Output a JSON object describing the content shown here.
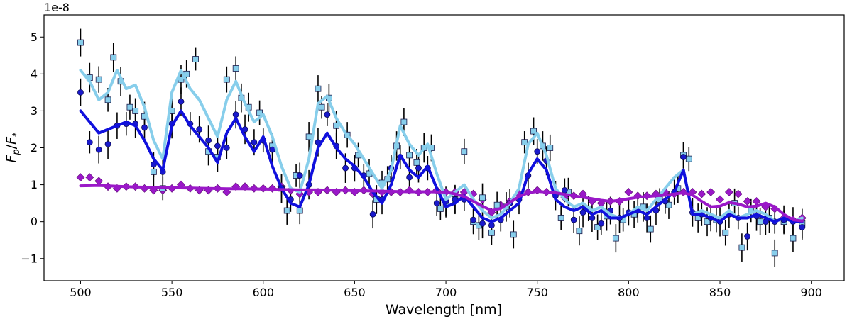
{
  "chart_data": {
    "type": "scatter",
    "title": "",
    "xlabel": "Wavelength [nm]",
    "ylabel_main": "F",
    "ylabel_sub": "p",
    "ylabel_den": "F",
    "ylabel_den_sub": "*",
    "offset_text": "1e-8",
    "xlim": [
      480,
      918
    ],
    "ylim": [
      -1.6,
      5.6
    ],
    "xticks": [
      500,
      550,
      600,
      650,
      700,
      750,
      800,
      850,
      900
    ],
    "xtick_labels": [
      "500",
      "550",
      "600",
      "650",
      "700",
      "750",
      "800",
      "850",
      "900"
    ],
    "yticks": [
      -1,
      0,
      1,
      2,
      3,
      4,
      5
    ],
    "ytick_labels": [
      "−1",
      "0",
      "1",
      "2",
      "3",
      "4",
      "5"
    ],
    "grid": false,
    "legend": "none",
    "lines": [
      {
        "name": "light-blue model",
        "color": "#87CEEB",
        "x": [
          500,
          505,
          510,
          515,
          520,
          525,
          530,
          535,
          540,
          545,
          550,
          555,
          560,
          565,
          570,
          575,
          580,
          585,
          590,
          595,
          600,
          605,
          610,
          615,
          620,
          625,
          630,
          635,
          640,
          645,
          650,
          655,
          660,
          665,
          670,
          675,
          680,
          685,
          690,
          695,
          700,
          705,
          710,
          715,
          720,
          725,
          730,
          735,
          740,
          745,
          750,
          755,
          760,
          765,
          770,
          775,
          780,
          785,
          790,
          795,
          800,
          805,
          810,
          815,
          820,
          825,
          830,
          835,
          840,
          845,
          850,
          855,
          860,
          865,
          870,
          875,
          880,
          885,
          890,
          895
        ],
        "y": [
          4.1,
          3.8,
          3.3,
          3.5,
          4.1,
          3.6,
          3.7,
          3.1,
          2.2,
          1.7,
          3.5,
          4.1,
          3.6,
          3.3,
          2.8,
          2.3,
          3.3,
          3.8,
          3.2,
          2.7,
          2.9,
          2.3,
          1.5,
          0.9,
          0.8,
          1.7,
          3.2,
          3.4,
          2.8,
          2.4,
          2.1,
          1.7,
          1.3,
          0.9,
          1.4,
          2.6,
          2.1,
          1.8,
          2.1,
          1.3,
          0.6,
          0.8,
          1.0,
          0.6,
          0.3,
          0.1,
          0.2,
          0.5,
          0.9,
          2.1,
          2.4,
          1.8,
          0.9,
          0.6,
          0.4,
          0.5,
          0.3,
          0.4,
          0.2,
          0.1,
          0.2,
          0.4,
          0.3,
          0.6,
          0.9,
          1.2,
          1.4,
          0.2,
          0.3,
          0.2,
          0.1,
          0.3,
          0.1,
          0.2,
          0.3,
          0.2,
          0.0,
          0.1,
          0.0,
          0.1
        ]
      },
      {
        "name": "blue model",
        "color": "#1010DD",
        "x": [
          500,
          505,
          510,
          515,
          520,
          525,
          530,
          535,
          540,
          545,
          550,
          555,
          560,
          565,
          570,
          575,
          580,
          585,
          590,
          595,
          600,
          605,
          610,
          615,
          620,
          625,
          630,
          635,
          640,
          645,
          650,
          655,
          660,
          665,
          670,
          675,
          680,
          685,
          690,
          695,
          700,
          705,
          710,
          715,
          720,
          725,
          730,
          735,
          740,
          745,
          750,
          755,
          760,
          765,
          770,
          775,
          780,
          785,
          790,
          795,
          800,
          805,
          810,
          815,
          820,
          825,
          830,
          835,
          840,
          845,
          850,
          855,
          860,
          865,
          870,
          875,
          880,
          885,
          890,
          895
        ],
        "y": [
          3.0,
          2.7,
          2.4,
          2.5,
          2.6,
          2.7,
          2.6,
          2.2,
          1.7,
          1.4,
          2.6,
          3.0,
          2.6,
          2.3,
          2.0,
          1.6,
          2.4,
          2.8,
          2.3,
          1.9,
          2.3,
          1.5,
          0.9,
          0.5,
          0.4,
          1.0,
          2.0,
          2.4,
          2.0,
          1.7,
          1.5,
          1.2,
          0.8,
          0.5,
          1.0,
          1.8,
          1.4,
          1.2,
          1.5,
          0.9,
          0.4,
          0.5,
          0.7,
          0.4,
          0.1,
          0.0,
          0.1,
          0.3,
          0.5,
          1.3,
          1.7,
          1.4,
          0.6,
          0.4,
          0.3,
          0.4,
          0.2,
          0.3,
          0.1,
          0.1,
          0.2,
          0.3,
          0.2,
          0.4,
          0.6,
          0.8,
          1.4,
          0.2,
          0.2,
          0.1,
          0.0,
          0.2,
          0.1,
          0.1,
          0.2,
          0.1,
          0.0,
          0.1,
          0.0,
          0.0
        ]
      },
      {
        "name": "purple model",
        "color": "#9A18C8",
        "x": [
          500,
          510,
          520,
          530,
          540,
          550,
          560,
          570,
          580,
          590,
          600,
          610,
          620,
          630,
          640,
          650,
          660,
          670,
          680,
          690,
          700,
          705,
          710,
          715,
          720,
          725,
          730,
          735,
          740,
          745,
          750,
          755,
          760,
          765,
          770,
          775,
          780,
          785,
          790,
          795,
          800,
          805,
          810,
          815,
          820,
          825,
          830,
          835,
          840,
          845,
          850,
          855,
          860,
          865,
          870,
          875,
          880,
          885,
          890,
          895
        ],
        "y": [
          0.97,
          0.98,
          0.96,
          0.94,
          0.93,
          0.92,
          0.91,
          0.9,
          0.89,
          0.89,
          0.88,
          0.87,
          0.86,
          0.86,
          0.85,
          0.84,
          0.83,
          0.82,
          0.81,
          0.81,
          0.8,
          0.75,
          0.68,
          0.55,
          0.42,
          0.3,
          0.36,
          0.52,
          0.68,
          0.78,
          0.82,
          0.8,
          0.78,
          0.74,
          0.7,
          0.66,
          0.62,
          0.58,
          0.55,
          0.58,
          0.62,
          0.66,
          0.68,
          0.7,
          0.72,
          0.75,
          0.78,
          0.72,
          0.55,
          0.4,
          0.42,
          0.52,
          0.48,
          0.4,
          0.42,
          0.5,
          0.4,
          0.2,
          0.05,
          0.02
        ]
      }
    ],
    "series": [
      {
        "name": "light-blue squares",
        "marker": "square",
        "color": "#87CEEB",
        "x": [
          500,
          505,
          510,
          515,
          518,
          522,
          527,
          530,
          535,
          540,
          545,
          550,
          555,
          558,
          563,
          570,
          575,
          580,
          585,
          588,
          592,
          598,
          605,
          610,
          613,
          618,
          620,
          625,
          630,
          632,
          636,
          640,
          646,
          652,
          658,
          662,
          665,
          668,
          673,
          677,
          680,
          684,
          688,
          692,
          697,
          700,
          705,
          710,
          715,
          718,
          720,
          725,
          728,
          733,
          737,
          743,
          748,
          753,
          757,
          763,
          767,
          773,
          778,
          783,
          788,
          793,
          797,
          803,
          808,
          812,
          817,
          822,
          827,
          830,
          833,
          838,
          843,
          848,
          853,
          858,
          862,
          867,
          872,
          877,
          880,
          885,
          890,
          895
        ],
        "y": [
          4.85,
          3.9,
          3.85,
          3.3,
          4.45,
          3.8,
          3.1,
          3.0,
          2.85,
          1.35,
          0.9,
          3.0,
          3.85,
          4.0,
          4.4,
          1.9,
          1.75,
          3.85,
          4.15,
          3.35,
          3.1,
          2.95,
          2.05,
          0.9,
          0.3,
          1.25,
          0.3,
          2.3,
          3.6,
          3.1,
          3.35,
          2.6,
          2.35,
          1.8,
          1.3,
          0.6,
          1.05,
          1.15,
          2.05,
          2.7,
          1.8,
          1.6,
          2.0,
          2.0,
          0.35,
          0.5,
          0.6,
          1.9,
          0.0,
          -0.1,
          0.65,
          -0.3,
          0.45,
          0.4,
          -0.35,
          2.15,
          2.45,
          2.05,
          2.0,
          0.1,
          0.8,
          -0.25,
          0.35,
          -0.15,
          0.15,
          -0.45,
          0.05,
          0.2,
          0.4,
          -0.2,
          0.6,
          0.45,
          0.9,
          1.8,
          1.7,
          0.1,
          0.0,
          0.05,
          -0.3,
          0.5,
          -0.7,
          0.3,
          0.0,
          0.1,
          -0.85,
          0.0,
          -0.45,
          -0.05
        ]
      },
      {
        "name": "blue circles",
        "marker": "circle",
        "color": "#1A1ACC",
        "x": [
          500,
          505,
          510,
          515,
          520,
          525,
          530,
          535,
          540,
          545,
          550,
          555,
          560,
          565,
          570,
          575,
          580,
          585,
          590,
          595,
          600,
          605,
          610,
          615,
          620,
          625,
          630,
          635,
          640,
          645,
          650,
          655,
          660,
          665,
          670,
          675,
          680,
          685,
          690,
          695,
          700,
          705,
          710,
          715,
          720,
          725,
          730,
          735,
          740,
          745,
          750,
          755,
          760,
          765,
          770,
          775,
          780,
          785,
          790,
          795,
          800,
          805,
          810,
          815,
          820,
          825,
          830,
          835,
          840,
          845,
          850,
          855,
          860,
          865,
          870,
          875,
          880,
          885,
          890,
          895
        ],
        "y": [
          3.5,
          2.15,
          1.95,
          2.1,
          2.6,
          2.65,
          2.65,
          2.55,
          1.55,
          1.35,
          2.65,
          3.25,
          2.65,
          2.5,
          2.2,
          2.05,
          2.0,
          2.9,
          2.5,
          2.15,
          2.2,
          1.95,
          0.9,
          0.6,
          1.25,
          1.0,
          2.15,
          2.9,
          2.05,
          1.45,
          1.45,
          1.25,
          0.2,
          0.6,
          1.45,
          1.75,
          1.2,
          1.45,
          1.45,
          0.5,
          0.55,
          0.6,
          0.6,
          0.05,
          -0.05,
          -0.1,
          0.05,
          0.5,
          0.6,
          1.25,
          1.9,
          1.65,
          0.7,
          0.85,
          0.05,
          0.25,
          0.1,
          -0.05,
          0.3,
          0.1,
          0.25,
          0.3,
          0.1,
          0.3,
          0.55,
          0.8,
          1.75,
          0.25,
          0.2,
          0.1,
          0.0,
          0.2,
          0.1,
          -0.4,
          0.15,
          0.0,
          0.0,
          0.05,
          0.0,
          -0.15
        ]
      },
      {
        "name": "purple diamonds",
        "marker": "diamond",
        "color": "#9A18C8",
        "x": [
          500,
          505,
          510,
          515,
          520,
          525,
          530,
          535,
          540,
          545,
          550,
          555,
          560,
          565,
          570,
          575,
          580,
          585,
          590,
          595,
          600,
          605,
          610,
          615,
          620,
          625,
          630,
          635,
          640,
          645,
          650,
          655,
          660,
          665,
          670,
          675,
          680,
          685,
          690,
          695,
          700,
          705,
          710,
          715,
          720,
          725,
          730,
          735,
          740,
          745,
          750,
          755,
          760,
          765,
          770,
          775,
          780,
          785,
          790,
          795,
          800,
          805,
          810,
          815,
          820,
          825,
          830,
          835,
          840,
          845,
          850,
          855,
          860,
          865,
          870,
          875,
          880,
          885,
          890,
          895
        ],
        "y": [
          1.2,
          1.2,
          1.1,
          0.95,
          0.9,
          0.95,
          0.95,
          0.9,
          0.85,
          0.85,
          0.9,
          1.0,
          0.9,
          0.85,
          0.85,
          0.9,
          0.8,
          0.95,
          0.95,
          0.9,
          0.9,
          0.9,
          0.95,
          0.85,
          0.75,
          0.8,
          0.8,
          0.85,
          0.8,
          0.85,
          0.8,
          0.85,
          0.75,
          0.8,
          0.8,
          0.8,
          0.85,
          0.8,
          0.8,
          0.85,
          0.8,
          0.8,
          0.8,
          0.75,
          0.6,
          0.25,
          0.45,
          0.55,
          0.75,
          0.8,
          0.85,
          0.8,
          0.75,
          0.65,
          0.7,
          0.75,
          0.55,
          0.5,
          0.55,
          0.55,
          0.8,
          0.7,
          0.7,
          0.75,
          0.8,
          0.75,
          0.8,
          0.8,
          0.75,
          0.8,
          0.6,
          0.8,
          0.75,
          0.55,
          0.55,
          0.4,
          0.35,
          0.1,
          0.05,
          0.1
        ]
      }
    ]
  }
}
